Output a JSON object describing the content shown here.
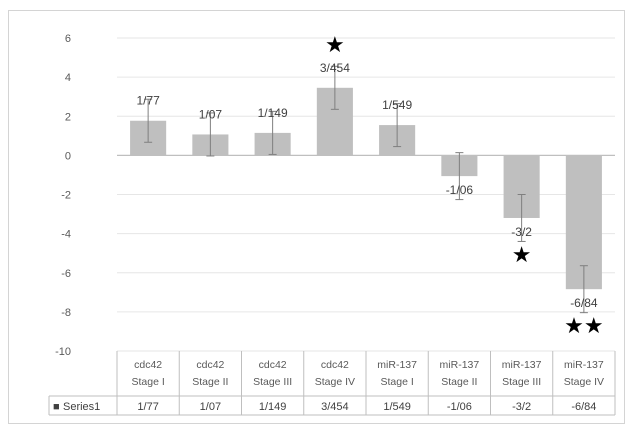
{
  "chart_data": {
    "type": "bar",
    "categories": [
      [
        "cdc42",
        "Stage I"
      ],
      [
        "cdc42",
        "Stage II"
      ],
      [
        "cdc42",
        "Stage III"
      ],
      [
        "cdc42",
        "Stage IV"
      ],
      [
        "miR-137",
        "Stage I"
      ],
      [
        "miR-137",
        "Stage II"
      ],
      [
        "miR-137",
        "Stage III"
      ],
      [
        "miR-137",
        "Stage IV"
      ]
    ],
    "series": [
      {
        "name": "Series1",
        "values": [
          1.77,
          1.07,
          1.149,
          3.454,
          1.549,
          -1.06,
          -3.2,
          -6.84
        ],
        "labels": [
          "1/77",
          "1/07",
          "1/149",
          "3/454",
          "1/549",
          "-1/06",
          "-3/2",
          "-6/84"
        ],
        "error": [
          1.1,
          1.1,
          1.1,
          1.1,
          1.1,
          1.2,
          1.2,
          1.2
        ],
        "color": "#bfbfbf"
      }
    ],
    "ylim": [
      -10,
      6
    ],
    "yticks": [
      6,
      4,
      2,
      0,
      -2,
      -4,
      -6,
      -8,
      -10
    ],
    "grid": true,
    "data_table": true,
    "legend_marker": "■",
    "annotations": [
      {
        "category_index": 3,
        "stars": 1,
        "position": "above"
      },
      {
        "category_index": 6,
        "stars": 1,
        "position": "below"
      },
      {
        "category_index": 7,
        "stars": 2,
        "position": "below"
      }
    ],
    "star_glyph": "★"
  }
}
